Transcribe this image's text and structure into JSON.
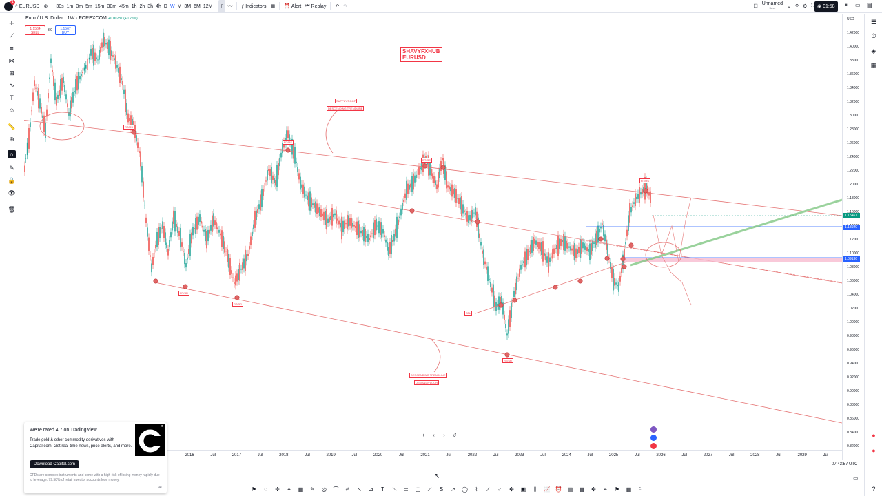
{
  "topbar": {
    "symbol": "EURUSD",
    "timeframes": [
      "30s",
      "1m",
      "3m",
      "5m",
      "15m",
      "30m",
      "45m",
      "1h",
      "2h",
      "3h",
      "4h",
      "D",
      "W",
      "M",
      "3M",
      "6M",
      "12M"
    ],
    "active_timeframe": "W",
    "indicators_label": "Indicators",
    "alert_label": "Alert",
    "replay_label": "Replay",
    "layout_name": "Unnamed",
    "layout_sub": "Save",
    "clock": "01:58"
  },
  "legend": {
    "title": "Euro / U.S. Dollar · 1W · FOREXCOM",
    "change": "+0.00287 (+0.25%)",
    "sell_price": "1.1564",
    "sell_label": "SELL",
    "spread": "3.0",
    "buy_price": "1.1567",
    "buy_label": "BUY"
  },
  "watermark": {
    "line1": "SHAVYFXHUB",
    "line2": "EURUSD"
  },
  "annotations": {
    "supply_roof": "SUPPLY/ROOF",
    "descending_trendline_top": "DESCENDING TRENDLINE",
    "descending_trendline_bottom": "DESCENDING TRENDLINE",
    "demand_floor": "DEMAND/FLOOR",
    "rt_rs_1": "RT/RS",
    "rt_rs_2": "RT/RS",
    "rt_rs_3": "RT/RS",
    "rt_rs_4": "RT/RS",
    "rt_sr_1": "RT/SR",
    "rt_sr_2": "RT/SR",
    "rt_sr_3": "RT/SR",
    "atl": "ATL"
  },
  "price_axis": {
    "currency": "USD",
    "ticks": [
      "1.42000",
      "1.40000",
      "1.38000",
      "1.36000",
      "1.34000",
      "1.32000",
      "1.30000",
      "1.28000",
      "1.26000",
      "1.24000",
      "1.22000",
      "1.20000",
      "1.18000",
      "1.16000",
      "1.14000",
      "1.12000",
      "1.10000",
      "1.08000",
      "1.06000",
      "1.04000",
      "1.02000",
      "1.00000",
      "0.98000",
      "0.96000",
      "0.94000",
      "0.92000",
      "0.90000",
      "0.88000",
      "0.86000",
      "0.84000",
      "0.82000"
    ],
    "badge_current": "1.15461",
    "badge_blue": "1.13920",
    "badge_pink": "1.09136"
  },
  "time_axis": {
    "ticks": [
      "2016",
      "Jul",
      "2017",
      "Jul",
      "2018",
      "Jul",
      "2019",
      "Jul",
      "2020",
      "Jul",
      "2021",
      "Jul",
      "2022",
      "Jul",
      "2023",
      "Jul",
      "2024",
      "Jul",
      "2025",
      "Jul",
      "2026",
      "Jul",
      "2027",
      "Jul",
      "2028",
      "Jul",
      "2029",
      "Jul"
    ],
    "utc": "07:43:57 UTC"
  },
  "popup": {
    "title": "We're rated 4.7 on TradingView",
    "body": "Trade gold & other commodity derivatives with Capital.com. Get real-time news, price alerts, and more.",
    "button": "Download Capital.com",
    "disclaimer": "CFDs are complex instruments and come with a high risk of losing money rapidly due to leverage. 79.58% of retail investor accounts lose money.",
    "ad": "AD"
  },
  "colors": {
    "up": "#26a69a",
    "down": "#ef5350",
    "trendline": "#e57373",
    "blue_line": "#2962ff",
    "green_line": "#81c784",
    "pink_zone": "#f8bbd0",
    "current_badge": "#089981"
  }
}
